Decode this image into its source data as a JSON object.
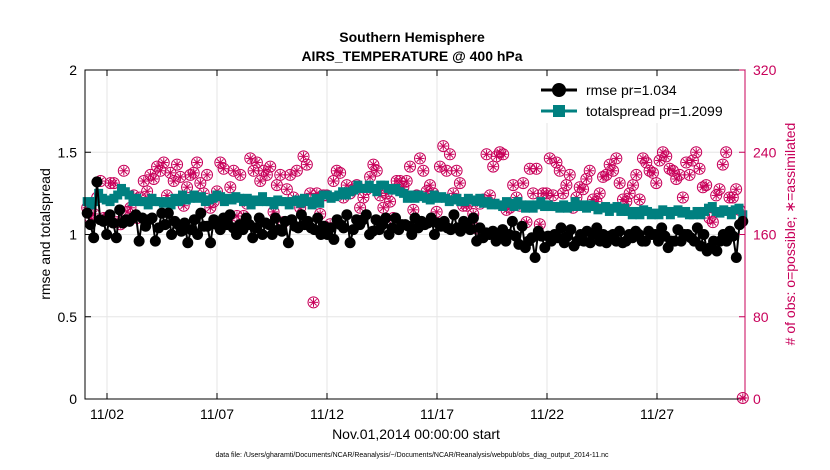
{
  "chart_data": {
    "type": "line",
    "title": [
      "Southern Hemisphere",
      "AIRS_TEMPERATURE @ 400 hPa"
    ],
    "xlabel": "Nov.01,2014 00:00:00 start",
    "ylabel_left": "rmse and totalspread",
    "ylabel_right": "# of obs: o=possible; ∗=assimilated",
    "footnote": "data file: /Users/gharamti/Documents/NCAR/Reanalysis/~/Documents/NCAR/Reanalysis/webpub/obs_diag_output_2014-11.nc",
    "x_range": [
      0.5,
      30.5
    ],
    "x_ticks": [
      {
        "pos": 1.5,
        "label": "11/02"
      },
      {
        "pos": 6.5,
        "label": "11/07"
      },
      {
        "pos": 11.5,
        "label": "11/12"
      },
      {
        "pos": 16.5,
        "label": "11/17"
      },
      {
        "pos": 21.5,
        "label": "11/22"
      },
      {
        "pos": 26.5,
        "label": "11/27"
      }
    ],
    "y_left_range": [
      0,
      2
    ],
    "y_left_ticks": [
      "0",
      "0.5",
      "1",
      "1.5",
      "2"
    ],
    "y_right_range": [
      0,
      320
    ],
    "y_right_ticks": [
      "0",
      "80",
      "160",
      "240",
      "320"
    ],
    "grid": true,
    "legend": {
      "position": "top-right",
      "entries": [
        "rmse pr=1.034",
        "totalspread pr=1.2099"
      ]
    },
    "colors": {
      "rmse": "#000000",
      "totalspread": "#008080",
      "obs": "#c8005a"
    },
    "series": [
      {
        "name": "rmse pr=1.034",
        "axis": "left",
        "marker": "circle",
        "values": [
          1.13,
          1.06,
          0.98,
          1.32,
          1.09,
          1.08,
          1.0,
          1.12,
          1.07,
          0.98,
          1.15,
          1.07,
          1.09,
          1.08,
          1.1,
          1.12,
          0.96,
          1.1,
          1.05,
          1.09,
          1.1,
          0.96,
          1.04,
          1.13,
          1.06,
          1.13,
          1.0,
          1.08,
          1.06,
          1.02,
          1.07,
          0.95,
          1.03,
          1.09,
          1.0,
          1.13,
          1.05,
          1.05,
          0.95,
          1.09,
          1.06,
          1.03,
          1.1,
          1.06,
          1.12,
          1.04,
          1.0,
          1.06,
          1.03,
          1.1,
          1.06,
          0.98,
          1.04,
          1.1,
          1.0,
          1.07,
          1.06,
          1.0,
          1.1,
          1.03,
          1.02,
          1.08,
          0.95,
          1.09,
          1.05,
          1.04,
          1.12,
          1.06,
          1.08,
          1.04,
          1.03,
          1.1,
          1.0,
          1.05,
          1.0,
          1.04,
          0.97,
          1.09,
          1.06,
          1.04,
          1.12,
          0.95,
          1.03,
          1.09,
          1.06,
          1.09,
          1.12,
          1.0,
          1.02,
          1.09,
          1.03,
          1.06,
          1.1,
          1.0,
          1.04,
          1.1,
          1.03,
          1.06,
          1.06,
          1.05,
          1.0,
          1.1,
          1.04,
          1.08,
          1.06,
          1.07,
          1.1,
          1.0,
          1.07,
          1.05,
          1.08,
          1.04,
          1.03,
          1.12,
          1.04,
          1.02,
          1.08,
          1.06,
          1.03,
          1.1,
          0.96,
          1.04,
          0.98,
          1.01,
          1.0,
          1.02,
          0.96,
          0.99,
          1.03,
          0.96,
          1.0,
          1.08,
          0.99,
          0.94,
          1.05,
          0.92,
          0.96,
          0.98,
          0.86,
          1.02,
          0.99,
          0.92,
          0.99,
          0.96,
          1.0,
          0.98,
          1.04,
          0.95,
          0.99,
          1.03,
          0.93,
          0.96,
          1.0,
          0.96,
          1.02,
          0.95,
          1.0,
          1.04,
          0.96,
          1.0,
          0.95,
          0.99,
          1.0,
          0.96,
          1.02,
          0.95,
          0.96,
          1.0,
          0.98,
          1.02,
          1.0,
          0.96,
          0.96,
          1.02,
          1.0,
          1.0,
          0.96,
          1.04,
          0.99,
          0.92,
          0.96,
          0.96,
          1.03,
          0.96,
          1.0,
          1.0,
          0.98,
          0.96,
          1.04,
          0.93,
          1.0,
          0.9,
          0.92,
          0.96,
          0.9,
          0.96,
          1.0,
          0.96,
          1.02,
          0.99,
          0.86,
          1.06,
          1.08
        ]
      },
      {
        "name": "totalspread pr=1.2099",
        "axis": "left",
        "marker": "square",
        "values": [
          1.2,
          1.18,
          1.2,
          1.25,
          1.22,
          1.21,
          1.2,
          1.22,
          1.24,
          1.28,
          1.26,
          1.24,
          1.2,
          1.22,
          1.2,
          1.2,
          1.18,
          1.22,
          1.2,
          1.2,
          1.19,
          1.2,
          1.18,
          1.22,
          1.2,
          1.24,
          1.21,
          1.22,
          1.24,
          1.22,
          1.23,
          1.2,
          1.21,
          1.22,
          1.24,
          1.23,
          1.2,
          1.22,
          1.21,
          1.23,
          1.22,
          1.2,
          1.22,
          1.18,
          1.21,
          1.2,
          1.23,
          1.2,
          1.2,
          1.18,
          1.21,
          1.2,
          1.2,
          1.18,
          1.2,
          1.21,
          1.19,
          1.22,
          1.2,
          1.18,
          1.22,
          1.19,
          1.24,
          1.24,
          1.22,
          1.23,
          1.24,
          1.26,
          1.24,
          1.26,
          1.27,
          1.3,
          1.28,
          1.28,
          1.3,
          1.28,
          1.26,
          1.3,
          1.3,
          1.28,
          1.27,
          1.28,
          1.26,
          1.25,
          1.22,
          1.24,
          1.22,
          1.24,
          1.23,
          1.22,
          1.21,
          1.24,
          1.22,
          1.23,
          1.22,
          1.2,
          1.21,
          1.22,
          1.2,
          1.2,
          1.22,
          1.21,
          1.2,
          1.22,
          1.19,
          1.2,
          1.18,
          1.19,
          1.18,
          1.17,
          1.2,
          1.19,
          1.17,
          1.2,
          1.18,
          1.16,
          1.18,
          1.16,
          1.18,
          1.2,
          1.17,
          1.18,
          1.17,
          1.17,
          1.16,
          1.18,
          1.16,
          1.17,
          1.2,
          1.17,
          1.18,
          1.16,
          1.18,
          1.17,
          1.15,
          1.16,
          1.17,
          1.14,
          1.16,
          1.17,
          1.14,
          1.16,
          1.14,
          1.12,
          1.14,
          1.12,
          1.15,
          1.14,
          1.12,
          1.13,
          1.12,
          1.15,
          1.14,
          1.12,
          1.14,
          1.15,
          1.13,
          1.14,
          1.12,
          1.12,
          1.14,
          1.12,
          1.14,
          1.16,
          1.17,
          1.14,
          1.13,
          1.15,
          1.14,
          1.12,
          1.15,
          1.16,
          1.12
        ]
      },
      {
        "name": "possible obs",
        "axis": "right",
        "marker": "circle-open",
        "values": [
          186,
          176,
          180,
          196,
          212,
          176,
          176,
          210,
          210,
          172,
          170,
          222,
          182,
          186,
          198,
          176,
          196,
          212,
          202,
          218,
          214,
          226,
          222,
          230,
          198,
          220,
          212,
          228,
          216,
          188,
          206,
          218,
          220,
          230,
          210,
          200,
          218,
          186,
          192,
          202,
          230,
          224,
          174,
          206,
          222,
          178,
          218,
          178,
          190,
          234,
          222,
          230,
          212,
          222,
          218,
          226,
          182,
          208,
          218,
          172,
          204,
          218,
          196,
          222,
          186,
          236,
          228,
          200,
          94,
          200,
          180,
          198,
          198,
          170,
          212,
          222,
          220,
          196,
          208,
          200,
          204,
          208,
          186,
          196,
          204,
          216,
          228,
          222,
          198,
          186,
          200,
          192,
          176,
          212,
          212,
          206,
          212,
          226,
          184,
          198,
          234,
          222,
          202,
          208,
          200,
          182,
          226,
          246,
          222,
          238,
          200,
          222,
          210,
          188,
          188,
          192,
          180,
          166,
          190,
          194,
          238,
          198,
          226,
          236,
          240,
          238,
          184,
          186,
          208,
          196,
          188,
          210,
          172,
          224,
          200,
          224,
          170,
          200,
          200,
          234,
          198,
          230,
          222,
          200,
          208,
          218,
          186,
          196,
          206,
          204,
          214,
          222,
          194,
          192,
          200,
          216,
          218,
          228,
          222,
          234,
          210,
          194,
          192,
          200,
          208,
          218,
          194,
          234,
          230,
          222,
          220,
          210,
          232,
          240,
          236,
          224,
          222,
          214,
          218,
          196,
          230,
          218,
          232,
          240,
          224,
          206,
          208,
          176,
          172,
          198,
          204,
          228,
          240,
          196,
          196,
          204,
          184,
          1
        ]
      },
      {
        "name": "assimilated obs",
        "axis": "right",
        "marker": "asterisk",
        "values": [
          186,
          176,
          180,
          196,
          212,
          176,
          176,
          210,
          210,
          172,
          170,
          222,
          182,
          186,
          198,
          176,
          196,
          212,
          202,
          218,
          214,
          226,
          222,
          230,
          198,
          220,
          212,
          228,
          216,
          188,
          206,
          218,
          220,
          230,
          210,
          200,
          218,
          186,
          192,
          202,
          230,
          224,
          174,
          206,
          222,
          178,
          218,
          178,
          190,
          234,
          222,
          230,
          212,
          222,
          218,
          226,
          182,
          208,
          218,
          172,
          204,
          218,
          196,
          222,
          186,
          236,
          228,
          200,
          94,
          200,
          180,
          198,
          198,
          170,
          212,
          222,
          220,
          196,
          208,
          200,
          204,
          208,
          186,
          196,
          204,
          216,
          228,
          222,
          198,
          186,
          200,
          192,
          176,
          212,
          212,
          206,
          212,
          226,
          184,
          198,
          234,
          222,
          202,
          208,
          200,
          182,
          226,
          246,
          222,
          238,
          200,
          222,
          210,
          188,
          188,
          192,
          180,
          166,
          190,
          194,
          238,
          198,
          226,
          236,
          240,
          238,
          184,
          186,
          208,
          196,
          188,
          210,
          172,
          224,
          200,
          224,
          170,
          200,
          200,
          234,
          198,
          230,
          222,
          200,
          208,
          218,
          186,
          196,
          206,
          204,
          214,
          222,
          194,
          192,
          200,
          216,
          218,
          228,
          222,
          234,
          210,
          194,
          192,
          200,
          208,
          218,
          194,
          234,
          230,
          222,
          220,
          210,
          232,
          240,
          236,
          224,
          222,
          214,
          218,
          196,
          230,
          218,
          232,
          240,
          224,
          206,
          208,
          176,
          172,
          198,
          204,
          228,
          240,
          196,
          196,
          204,
          184,
          1
        ]
      }
    ]
  }
}
